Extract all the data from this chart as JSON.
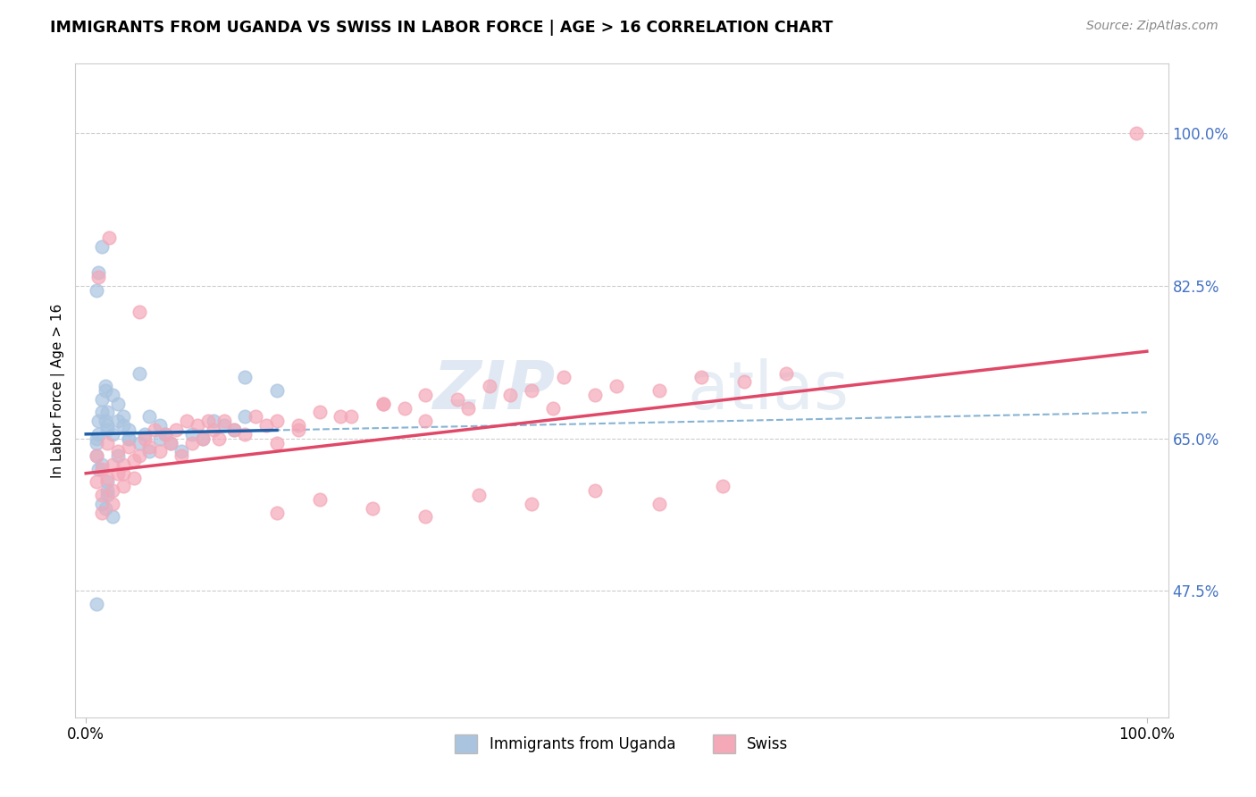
{
  "title": "IMMIGRANTS FROM UGANDA VS SWISS IN LABOR FORCE | AGE > 16 CORRELATION CHART",
  "source": "Source: ZipAtlas.com",
  "ylabel": "In Labor Force | Age > 16",
  "blue_color": "#aac4e0",
  "pink_color": "#f4a8b8",
  "blue_line_color": "#2060a8",
  "pink_line_color": "#e04868",
  "blue_dash_color": "#88b4d4",
  "text_color": "#4472c4",
  "watermark_zip": "ZIP",
  "watermark_atlas": "atlas",
  "watermark_color": "#c8d8ea",
  "legend_xlabel_left": "Immigrants from Uganda",
  "legend_xlabel_right": "Swiss",
  "ytick_vals": [
    47.5,
    65.0,
    82.5,
    100.0
  ],
  "ytick_labels": [
    "47.5%",
    "65.0%",
    "82.5%",
    "100.0%"
  ],
  "xlim": [
    -1.0,
    102.0
  ],
  "ylim": [
    33.0,
    108.0
  ],
  "uganda_x": [
    1.0,
    1.2,
    1.5,
    1.8,
    2.0,
    1.0,
    1.2,
    1.5,
    1.8,
    2.0,
    1.0,
    1.2,
    1.5,
    1.8,
    2.0,
    2.5,
    3.0,
    3.5,
    4.0,
    2.5,
    3.0,
    3.5,
    4.0,
    5.0,
    5.5,
    6.0,
    7.0,
    7.5,
    8.0,
    9.0,
    10.0,
    11.0,
    12.0,
    13.0,
    14.0,
    15.0,
    1.0,
    1.2,
    1.5,
    1.8,
    2.0,
    2.5,
    1.0,
    1.5,
    2.0,
    3.0,
    4.0,
    5.0,
    6.0,
    7.0,
    15.0,
    18.0,
    2.0
  ],
  "uganda_y": [
    65.0,
    67.0,
    69.5,
    71.0,
    68.0,
    63.0,
    61.5,
    62.0,
    70.5,
    66.0,
    64.5,
    65.5,
    68.0,
    67.0,
    66.5,
    65.5,
    67.0,
    66.5,
    65.0,
    70.0,
    69.0,
    67.5,
    66.0,
    64.5,
    65.5,
    67.5,
    66.5,
    65.5,
    64.5,
    63.5,
    65.5,
    65.0,
    67.0,
    66.5,
    66.0,
    72.0,
    82.0,
    84.0,
    87.0,
    57.0,
    60.0,
    56.0,
    46.0,
    57.5,
    59.0,
    63.0,
    65.0,
    72.5,
    63.5,
    65.0,
    67.5,
    70.5,
    58.5
  ],
  "swiss_x": [
    1.0,
    1.5,
    2.0,
    2.5,
    3.0,
    3.5,
    4.0,
    4.5,
    5.0,
    5.5,
    6.0,
    6.5,
    7.0,
    7.5,
    8.0,
    8.5,
    9.0,
    9.5,
    10.0,
    10.5,
    11.0,
    11.5,
    12.0,
    12.5,
    13.0,
    14.0,
    15.0,
    16.0,
    17.0,
    18.0,
    1.0,
    1.5,
    2.0,
    2.5,
    3.0,
    3.5,
    1.5,
    2.5,
    3.5,
    4.5,
    20.0,
    22.0,
    25.0,
    28.0,
    30.0,
    32.0,
    35.0,
    38.0,
    42.0,
    45.0,
    18.0,
    20.0,
    24.0,
    28.0,
    32.0,
    36.0,
    40.0,
    44.0,
    48.0,
    50.0,
    54.0,
    58.0,
    62.0,
    66.0,
    18.0,
    22.0,
    27.0,
    32.0,
    37.0,
    42.0,
    48.0,
    54.0,
    60.0,
    99.0,
    1.2,
    2.2,
    5.0
  ],
  "swiss_y": [
    63.0,
    61.5,
    64.5,
    62.0,
    63.5,
    61.0,
    64.0,
    62.5,
    63.0,
    65.0,
    64.0,
    66.0,
    63.5,
    65.5,
    64.5,
    66.0,
    63.0,
    67.0,
    64.5,
    66.5,
    65.0,
    67.0,
    66.0,
    65.0,
    67.0,
    66.0,
    65.5,
    67.5,
    66.5,
    67.0,
    60.0,
    58.5,
    60.5,
    59.0,
    61.0,
    62.0,
    56.5,
    57.5,
    59.5,
    60.5,
    66.5,
    68.0,
    67.5,
    69.0,
    68.5,
    70.0,
    69.5,
    71.0,
    70.5,
    72.0,
    64.5,
    66.0,
    67.5,
    69.0,
    67.0,
    68.5,
    70.0,
    68.5,
    70.0,
    71.0,
    70.5,
    72.0,
    71.5,
    72.5,
    56.5,
    58.0,
    57.0,
    56.0,
    58.5,
    57.5,
    59.0,
    57.5,
    59.5,
    100.0,
    83.5,
    88.0,
    79.5
  ]
}
